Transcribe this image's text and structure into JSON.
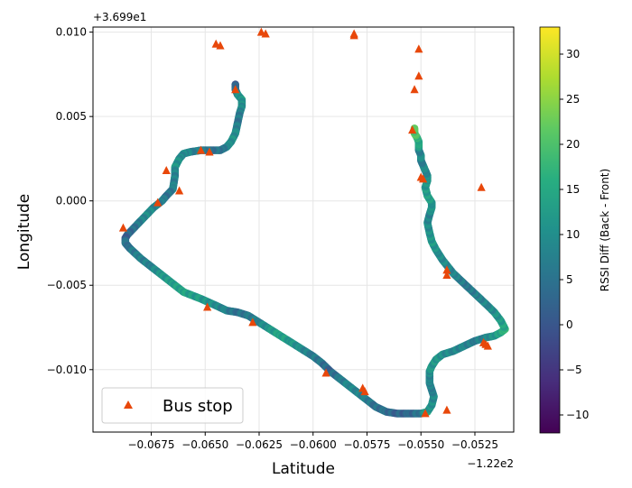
{
  "chart_data": {
    "type": "scatter",
    "xlabel": "Latitude",
    "ylabel": "Longitude",
    "x_offset_label": "−1.22e2",
    "y_offset_label": "+3.699e1",
    "x_offset": -122,
    "y_offset": 36.99,
    "xlim": [
      -0.0702,
      -0.0507
    ],
    "ylim": [
      -0.0137,
      0.0103
    ],
    "xticks": [
      -0.0675,
      -0.065,
      -0.0625,
      -0.06,
      -0.0575,
      -0.055,
      -0.0525
    ],
    "xtick_labels": [
      "−0.0675",
      "−0.0650",
      "−0.0625",
      "−0.0600",
      "−0.0575",
      "−0.0550",
      "−0.0525"
    ],
    "yticks": [
      -0.01,
      -0.005,
      0.0,
      0.005,
      0.01
    ],
    "ytick_labels": [
      "−0.010",
      "−0.005",
      "0.000",
      "0.005",
      "0.010"
    ],
    "grid": true,
    "legend": {
      "location": "lower-left",
      "label": "Bus stop"
    },
    "colorbar": {
      "label": "RSSI Diff (Back - Front)",
      "range": [
        -12,
        33
      ],
      "ticks": [
        -10,
        -5,
        0,
        5,
        10,
        15,
        20,
        25,
        30
      ],
      "colormap": "viridis"
    },
    "colors": {
      "bus_stop_marker": "#e8470a",
      "grid": "#e6e6e6"
    },
    "series": [
      {
        "name": "RSSI Diff route",
        "kind": "scatter-path",
        "path_x": [
          -0.0636,
          -0.0636,
          -0.0635,
          -0.0633,
          -0.0633,
          -0.0634,
          -0.0635,
          -0.0636,
          -0.0638,
          -0.064,
          -0.0643,
          -0.0648,
          -0.0652,
          -0.0657,
          -0.066,
          -0.0662,
          -0.0664,
          -0.0664,
          -0.0665,
          -0.0668,
          -0.067,
          -0.0674,
          -0.0677,
          -0.068,
          -0.0683,
          -0.0686,
          -0.0687,
          -0.0687,
          -0.0685,
          -0.068,
          -0.0675,
          -0.067,
          -0.0665,
          -0.066,
          -0.0652,
          -0.0645,
          -0.064,
          -0.0635,
          -0.063,
          -0.0625,
          -0.062,
          -0.0615,
          -0.061,
          -0.0605,
          -0.06,
          -0.0596,
          -0.0592,
          -0.0587,
          -0.0583,
          -0.0579,
          -0.0575,
          -0.0571,
          -0.0566,
          -0.0561,
          -0.0555,
          -0.055,
          -0.0547,
          -0.0545,
          -0.0544,
          -0.0545,
          -0.0546,
          -0.0546,
          -0.0546,
          -0.0545,
          -0.0543,
          -0.054,
          -0.0535,
          -0.053,
          -0.0525,
          -0.052,
          -0.0516,
          -0.0513,
          -0.0511,
          -0.0513,
          -0.0516,
          -0.052,
          -0.0525,
          -0.053,
          -0.0535,
          -0.054,
          -0.0543,
          -0.0545,
          -0.0546,
          -0.0547,
          -0.0546,
          -0.0545,
          -0.0545,
          -0.0547,
          -0.0548,
          -0.0547,
          -0.0547,
          -0.0548,
          -0.0549,
          -0.055,
          -0.055,
          -0.0551,
          -0.0551,
          -0.0551,
          -0.0552,
          -0.0553,
          -0.0553
        ],
        "path_y": [
          0.0069,
          0.0066,
          0.0063,
          0.006,
          0.0056,
          0.0052,
          0.0046,
          0.004,
          0.0035,
          0.0032,
          0.003,
          0.003,
          0.003,
          0.0029,
          0.0028,
          0.0025,
          0.002,
          0.0015,
          0.0007,
          0.0003,
          0.0,
          -0.0004,
          -0.0008,
          -0.0012,
          -0.0016,
          -0.002,
          -0.0022,
          -0.0025,
          -0.0028,
          -0.0034,
          -0.0039,
          -0.0044,
          -0.0049,
          -0.0054,
          -0.0058,
          -0.0062,
          -0.0065,
          -0.0066,
          -0.0068,
          -0.0072,
          -0.0076,
          -0.008,
          -0.0084,
          -0.0088,
          -0.0092,
          -0.0096,
          -0.0101,
          -0.0106,
          -0.011,
          -0.0114,
          -0.0118,
          -0.0122,
          -0.0125,
          -0.0126,
          -0.0126,
          -0.0126,
          -0.0125,
          -0.0121,
          -0.0116,
          -0.0112,
          -0.0108,
          -0.0105,
          -0.0101,
          -0.0098,
          -0.0094,
          -0.0091,
          -0.0089,
          -0.0086,
          -0.0083,
          -0.0081,
          -0.008,
          -0.0078,
          -0.0076,
          -0.0071,
          -0.0066,
          -0.0061,
          -0.0055,
          -0.0049,
          -0.0043,
          -0.0035,
          -0.0029,
          -0.0024,
          -0.0019,
          -0.0013,
          -0.0008,
          -0.0004,
          -0.0001,
          0.0003,
          0.0008,
          0.0012,
          0.0015,
          0.0018,
          0.0021,
          0.0024,
          0.0027,
          0.003,
          0.0033,
          0.0035,
          0.0038,
          0.004,
          0.0043
        ],
        "values": [
          0,
          4,
          9,
          12,
          10,
          7,
          6,
          9,
          11,
          8,
          6,
          5,
          7,
          8,
          9,
          10,
          11,
          8,
          7,
          5,
          6,
          8,
          10,
          8,
          5,
          3,
          2,
          4,
          6,
          7,
          8,
          11,
          13,
          14,
          12,
          10,
          7,
          5,
          6,
          8,
          11,
          14,
          12,
          9,
          7,
          5,
          3,
          6,
          9,
          8,
          7,
          5,
          4,
          3,
          2,
          6,
          13,
          11,
          9,
          8,
          7,
          8,
          10,
          11,
          12,
          10,
          9,
          8,
          7,
          8,
          11,
          14,
          16,
          13,
          10,
          9,
          7,
          6,
          8,
          9,
          10,
          12,
          11,
          9,
          8,
          10,
          12,
          13,
          12,
          11,
          10,
          9,
          8,
          8,
          9,
          8,
          13,
          15,
          17,
          20,
          22
        ]
      },
      {
        "name": "Bus stop",
        "kind": "marker",
        "marker": "triangle",
        "x": [
          -0.0645,
          -0.0643,
          -0.0624,
          -0.0622,
          -0.0581,
          -0.0581,
          -0.0551,
          -0.0551,
          -0.0553,
          -0.0554,
          -0.0636,
          -0.0652,
          -0.0648,
          -0.0668,
          -0.0662,
          -0.0672,
          -0.0688,
          -0.0649,
          -0.0628,
          -0.0594,
          -0.0577,
          -0.0576,
          -0.0548,
          -0.0538,
          -0.0538,
          -0.0538,
          -0.0521,
          -0.052,
          -0.0519,
          -0.055,
          -0.0549,
          -0.0522
        ],
        "y": [
          0.0093,
          0.0092,
          0.01,
          0.0099,
          0.0099,
          0.0098,
          0.009,
          0.0074,
          0.0066,
          0.0042,
          0.0066,
          0.003,
          0.0029,
          0.0018,
          0.0006,
          -0.0001,
          -0.0016,
          -0.0063,
          -0.0072,
          -0.0102,
          -0.0111,
          -0.0113,
          -0.0126,
          -0.0124,
          -0.0041,
          -0.0044,
          -0.0084,
          -0.0085,
          -0.0086,
          0.0014,
          0.0013,
          0.0008
        ]
      }
    ]
  }
}
